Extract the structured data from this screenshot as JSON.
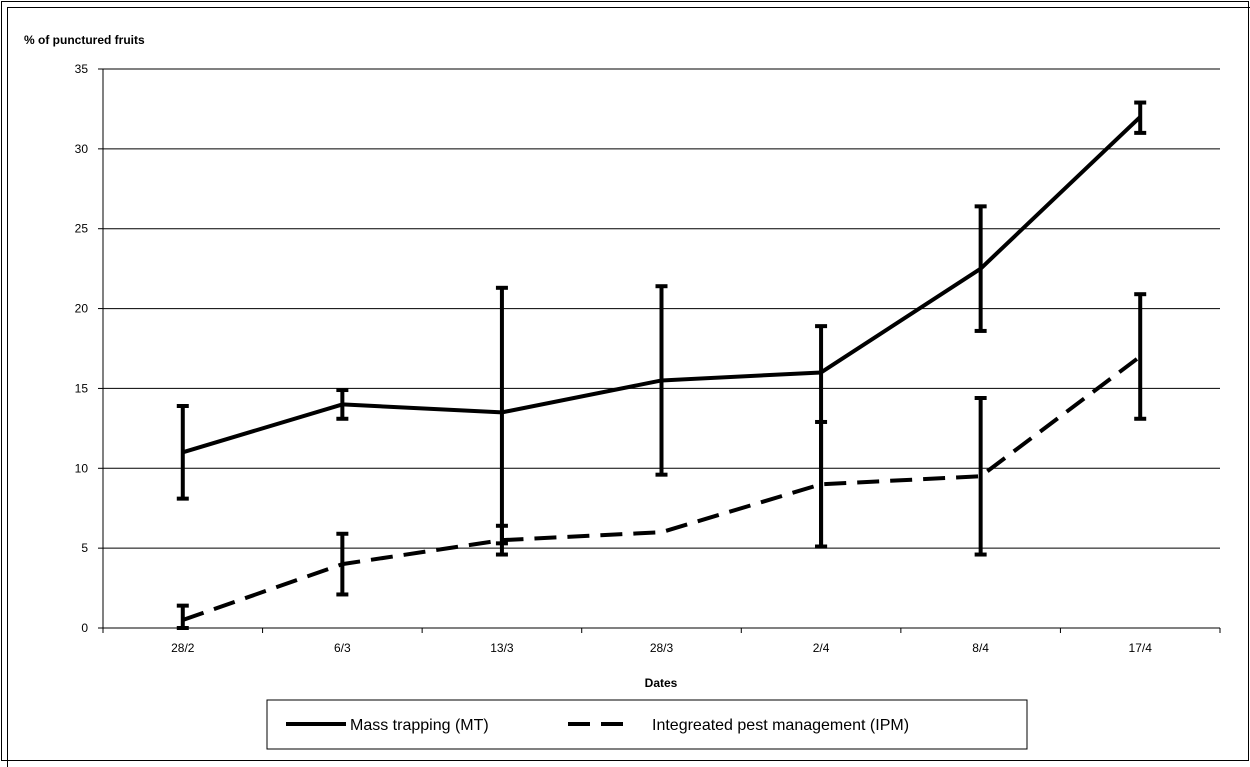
{
  "chart_data": {
    "type": "line",
    "title": "",
    "ylabel": "% of punctured fruits",
    "xlabel": "Dates",
    "categories": [
      "28/2",
      "6/3",
      "13/3",
      "28/3",
      "2/4",
      "8/4",
      "17/4"
    ],
    "ylim": [
      0,
      35
    ],
    "yticks": [
      0,
      5,
      10,
      15,
      20,
      25,
      30,
      35
    ],
    "grid": "horizontal",
    "legend_position": "bottom",
    "series": [
      {
        "name": "Mass trapping (MT)",
        "style": "solid",
        "color": "#000000",
        "values": [
          11,
          14,
          13.5,
          15.5,
          16,
          22.5,
          32
        ],
        "err_low": [
          8.1,
          13.1,
          5.3,
          9.6,
          5.1,
          18.6,
          31.0
        ],
        "err_high": [
          13.9,
          14.9,
          21.3,
          21.4,
          18.9,
          26.4,
          32.9
        ]
      },
      {
        "name": "Integreated pest management (IPM)",
        "style": "dashed",
        "color": "#000000",
        "values": [
          0.5,
          4,
          5.5,
          6,
          9,
          9.5,
          17
        ],
        "err_low": [
          0,
          2.1,
          4.6,
          null,
          5.1,
          4.6,
          13.1
        ],
        "err_high": [
          1.4,
          5.9,
          6.4,
          null,
          12.9,
          14.4,
          20.9
        ]
      }
    ]
  }
}
